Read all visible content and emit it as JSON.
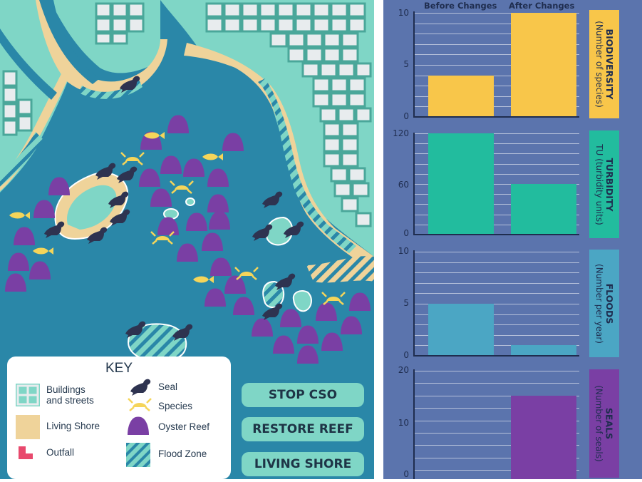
{
  "key": {
    "title": "KEY",
    "items": {
      "buildings": "Buildings\nand streets",
      "living_shore": "Living Shore",
      "outfall": "Outfall",
      "seal": "Seal",
      "species": "Species",
      "oyster_reef": "Oyster Reef",
      "flood_zone": "Flood Zone"
    }
  },
  "buttons": {
    "stop_cso": "STOP CSO",
    "restore_reef": "RESTORE REEF",
    "living_shore": "LIVING SHORE"
  },
  "panel": {
    "before_label": "Before Changes",
    "after_label": "After Changes"
  },
  "colors": {
    "water": "#2a87a8",
    "land": "#7fd6c6",
    "living_shore": "#efd39a",
    "panel": "#5b74ad",
    "biodiversity": "#f8c64a",
    "turbidity": "#22bc9e",
    "floods": "#4ba6c4",
    "seals": "#7a3fa4",
    "oyster": "#7a3fa4",
    "fish": "#f5d55a",
    "seal_icon": "#2e3350"
  },
  "chart_data": [
    {
      "type": "bar",
      "title": "BIODIVERSITY",
      "ylabel": "(Number of species)",
      "categories": [
        "Before Changes",
        "After Changes"
      ],
      "values": [
        4,
        10
      ],
      "ylim": [
        0,
        10
      ],
      "yticks": [
        "10",
        "5",
        "0"
      ],
      "color": "#f8c64a"
    },
    {
      "type": "bar",
      "title": "TURBIDITY",
      "ylabel": "TU (turbidity units)",
      "categories": [
        "Before Changes",
        "After Changes"
      ],
      "values": [
        120,
        60
      ],
      "ylim": [
        0,
        120
      ],
      "yticks": [
        "120",
        "60",
        "0"
      ],
      "color": "#22bc9e"
    },
    {
      "type": "bar",
      "title": "FLOODS",
      "ylabel": "(Number per year)",
      "categories": [
        "Before Changes",
        "After Changes"
      ],
      "values": [
        5,
        1
      ],
      "ylim": [
        0,
        10
      ],
      "yticks": [
        "10",
        "5",
        "0"
      ],
      "color": "#4ba6c4"
    },
    {
      "type": "bar",
      "title": "SEALS",
      "ylabel": "(Number of seals)",
      "categories": [
        "Before Changes",
        "After Changes"
      ],
      "values": [
        2,
        16
      ],
      "ylim": [
        0,
        20
      ],
      "yticks": [
        "20",
        "10",
        "0"
      ],
      "color": "#7a3fa4"
    }
  ]
}
